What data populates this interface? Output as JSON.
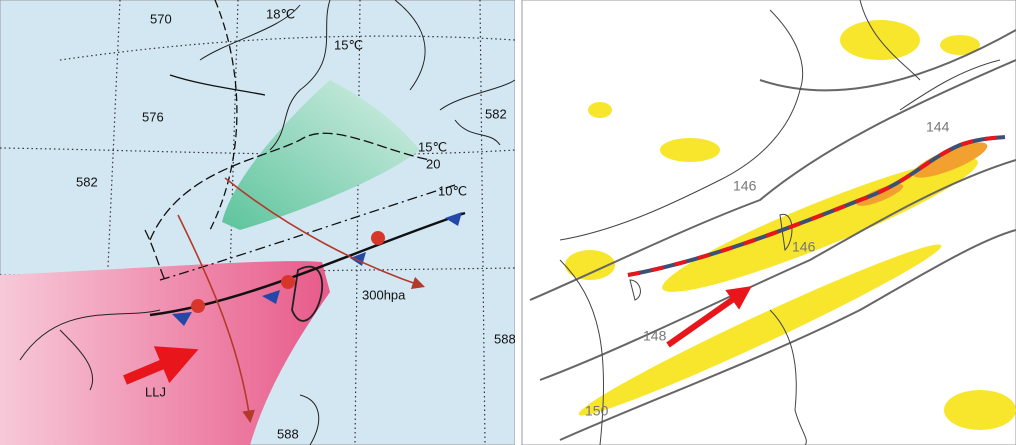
{
  "left_panel": {
    "labels": [
      "570",
      "18℃",
      "15℃",
      "576",
      "582",
      "582",
      "15℃",
      "20",
      "10℃",
      "300hpa",
      "LLJ",
      "588",
      "588"
    ]
  },
  "right_panel": {
    "labels": [
      "144",
      "146",
      "146",
      "148",
      "150"
    ]
  }
}
